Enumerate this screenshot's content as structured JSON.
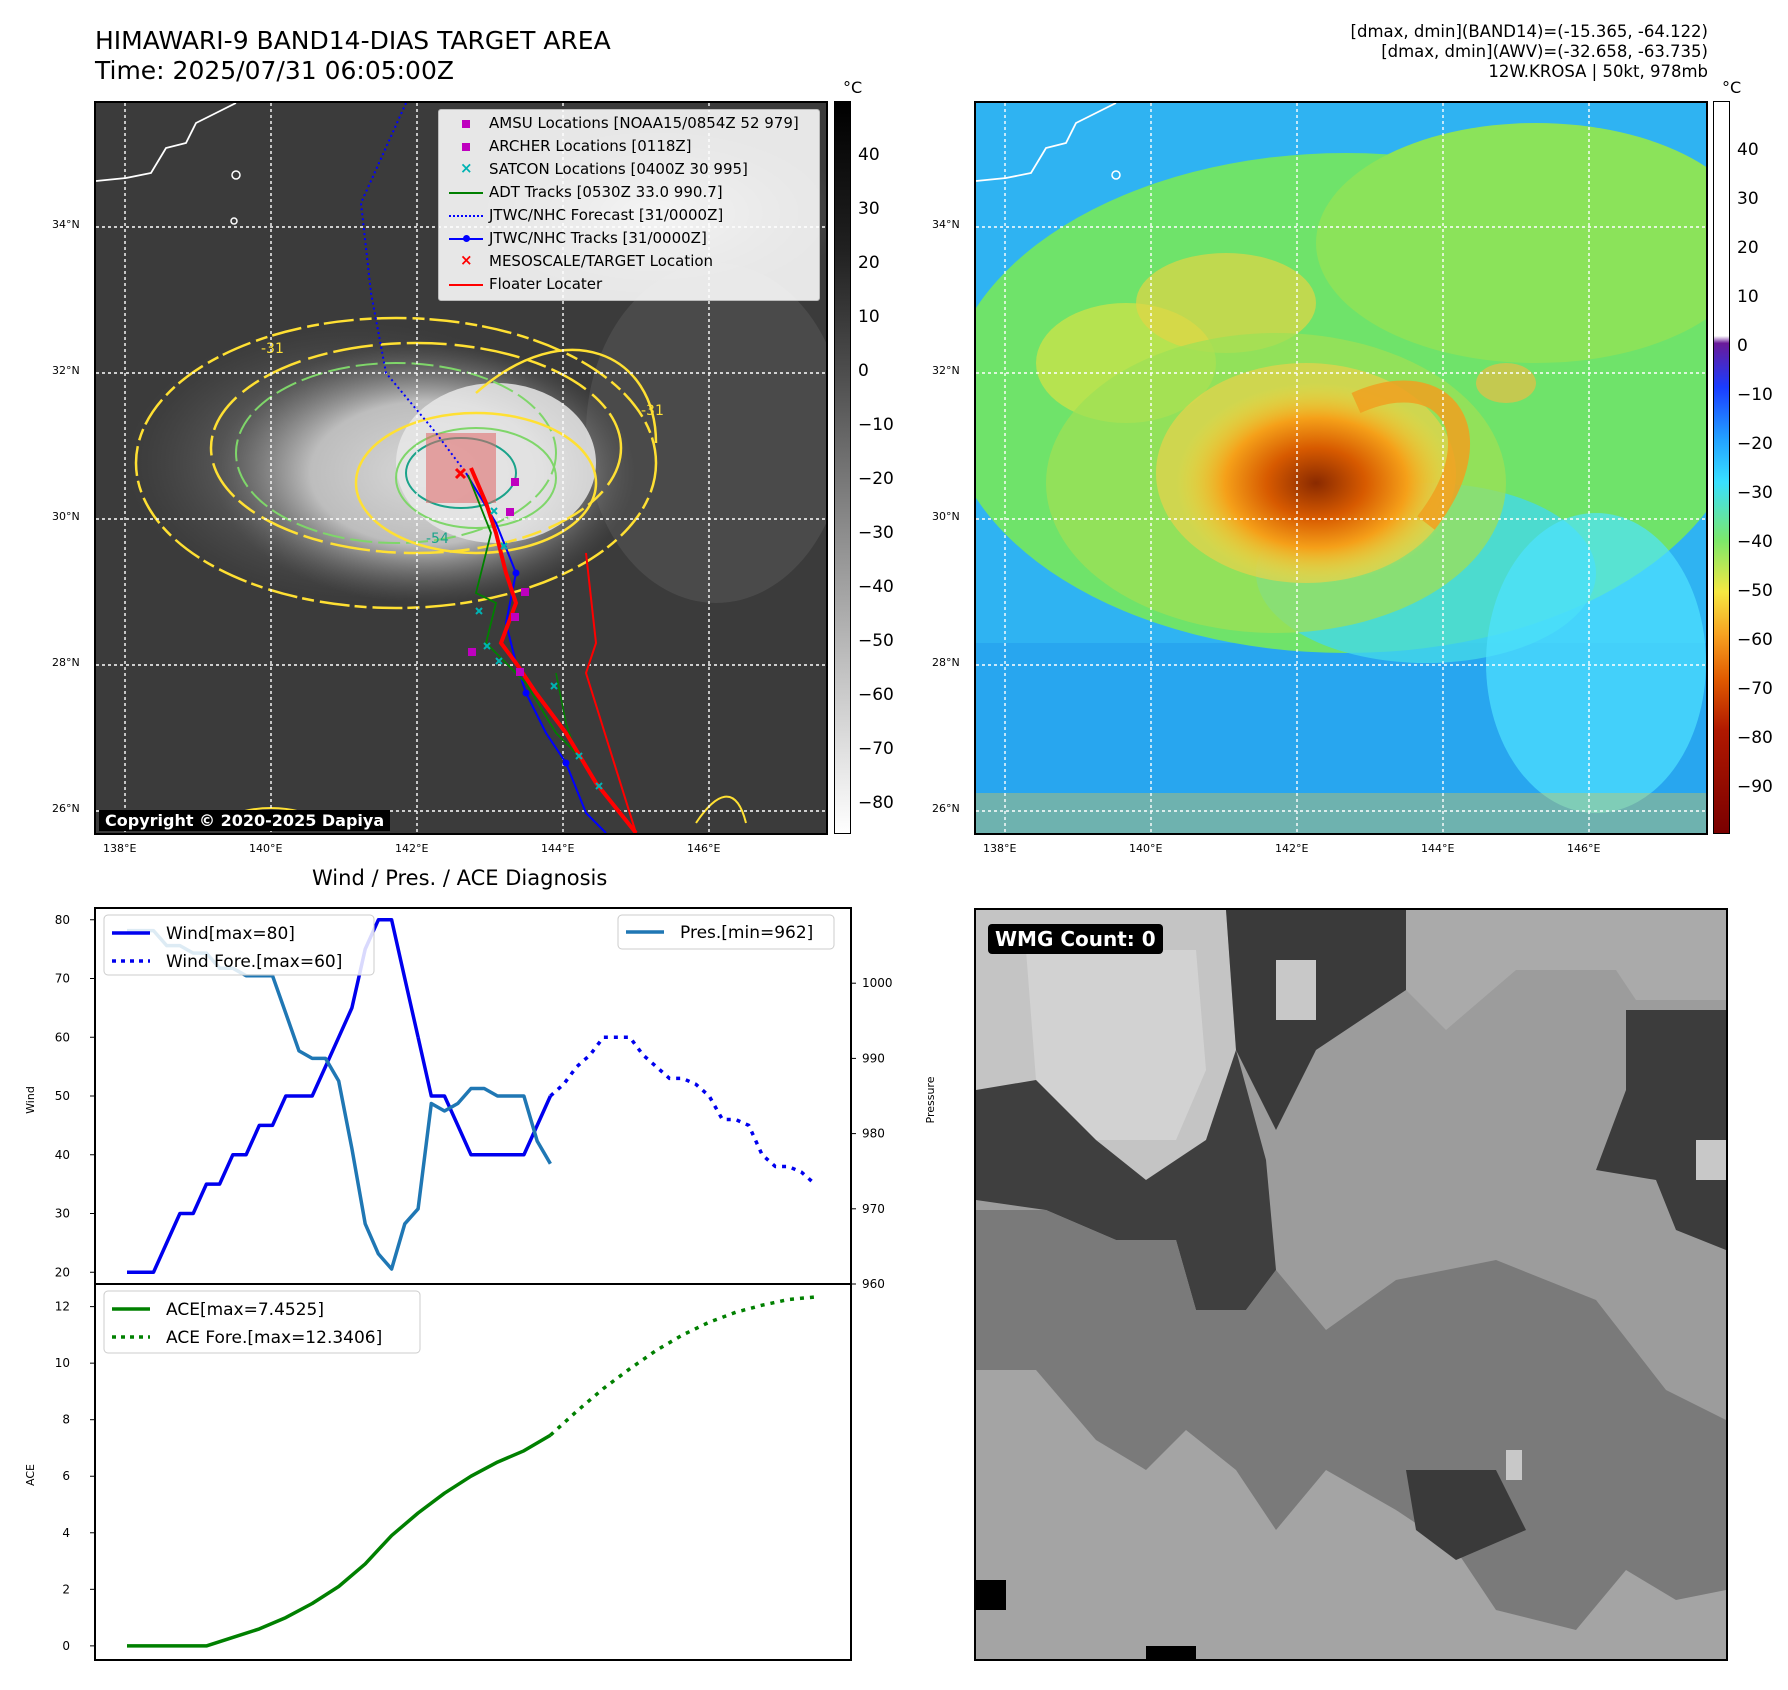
{
  "header": {
    "title_line1": "HIMAWARI-9 BAND14-DIAS TARGET AREA",
    "title_line2": "Time: 2025/07/31 06:05:00Z",
    "stats_line1": "[dmax, dmin](BAND14)=(-15.365, -64.122)",
    "stats_line2": "[dmax, dmin](AWV)=(-32.658, -63.735)",
    "stats_line3": "12W.KROSA | 50kt, 978mb"
  },
  "map": {
    "lon_ticks": [
      "138°E",
      "140°E",
      "142°E",
      "144°E",
      "146°E"
    ],
    "lat_ticks": [
      "34°N",
      "32°N",
      "30°N",
      "28°N",
      "26°N"
    ],
    "copyright": "Copyright © 2020-2025 Dapiya",
    "contour_labels": [
      "-31",
      "-54"
    ],
    "colors": {
      "coast": "#ffffff",
      "contour_warm": "#ffe033",
      "contour_mid": "#7fd66a",
      "contour_cold": "#1aa38a",
      "target_box": "#e06666"
    }
  },
  "legend": {
    "items": [
      {
        "label": "AMSU Locations [NOAA15/0854Z 52 979]",
        "symbol": "square",
        "color": "#bf00bf"
      },
      {
        "label": "ARCHER Locations [0118Z]",
        "symbol": "square",
        "color": "#bf00bf"
      },
      {
        "label": "SATCON Locations [0400Z 30 995]",
        "symbol": "x",
        "color": "#00b3b3"
      },
      {
        "label": "ADT Tracks [0530Z 33.0 990.7]",
        "symbol": "line",
        "color": "#008000"
      },
      {
        "label": "JTWC/NHC Forecast [31/0000Z]",
        "symbol": "dotted",
        "color": "#0000ff"
      },
      {
        "label": "JTWC/NHC Tracks [31/0000Z]",
        "symbol": "line-dot",
        "color": "#0000ff"
      },
      {
        "label": "MESOSCALE/TARGET Location",
        "symbol": "x",
        "color": "#ff0000"
      },
      {
        "label": "Floater Locater",
        "symbol": "line",
        "color": "#ff0000"
      }
    ]
  },
  "colorbar_band14": {
    "unit": "°C",
    "ticks": [
      "40",
      "30",
      "20",
      "10",
      "0",
      "−10",
      "−20",
      "−30",
      "−40",
      "−50",
      "−60",
      "−70",
      "−80"
    ]
  },
  "colorbar_awv": {
    "unit": "°C",
    "ticks": [
      "40",
      "30",
      "20",
      "10",
      "0",
      "−10",
      "−20",
      "−30",
      "−40",
      "−50",
      "−60",
      "−70",
      "−80",
      "−90"
    ]
  },
  "diagnosis_title": "Wind / Pres. / ACE Diagnosis",
  "wmg": {
    "label": "WMG Count: 0"
  },
  "chart_data": [
    {
      "type": "line",
      "title": "Wind / Pres. / ACE Diagnosis",
      "ylabel": "Wind",
      "y2label": "Pressure",
      "ylim": [
        18,
        82
      ],
      "y2lim": [
        960,
        1010
      ],
      "yticks": [
        20,
        30,
        40,
        50,
        60,
        70,
        80
      ],
      "y2ticks": [
        960,
        970,
        980,
        990,
        1000
      ],
      "series": [
        {
          "name": "Wind[max=80]",
          "axis": "left",
          "style": "solid",
          "color": "#0000ee",
          "x": [
            0,
            1,
            2,
            3,
            4,
            5,
            6,
            7,
            8,
            9,
            10,
            11,
            12,
            13,
            14,
            15,
            16,
            17,
            18,
            19,
            20,
            21,
            22
          ],
          "values": [
            20,
            20,
            20,
            25,
            30,
            30,
            35,
            35,
            40,
            40,
            45,
            45,
            50,
            50,
            50,
            55,
            60,
            65,
            75,
            80,
            80,
            70,
            60
          ]
        },
        {
          "name": "Wind[max=80]",
          "axis": "left",
          "style": "solid",
          "color": "#0000ee",
          "x": [
            22,
            23,
            24,
            25,
            26,
            27,
            28,
            29,
            30,
            31,
            32
          ],
          "values": [
            60,
            50,
            50,
            45,
            40,
            40,
            40,
            40,
            40,
            45,
            50
          ]
        },
        {
          "name": "Wind Fore.[max=60]",
          "axis": "left",
          "style": "dotted",
          "color": "#0000ee",
          "x": [
            32,
            33,
            34,
            35,
            36,
            37,
            38,
            39,
            40,
            41,
            42,
            43,
            44,
            45,
            46,
            47,
            48,
            49,
            50,
            51,
            52
          ],
          "values": [
            50,
            52,
            55,
            57,
            60,
            60,
            60,
            57,
            55,
            53,
            53,
            52,
            50,
            46,
            46,
            45,
            40,
            38,
            38,
            37,
            35
          ]
        },
        {
          "name": "Pres.[min=962]",
          "axis": "right",
          "style": "solid",
          "color": "#1f77b4",
          "x": [
            0,
            1,
            2,
            3,
            4,
            5,
            6,
            7,
            8,
            9,
            10,
            11,
            12,
            13,
            14,
            15,
            16,
            17,
            18,
            19,
            20,
            21,
            22,
            23,
            24,
            25,
            26,
            27,
            28,
            29,
            30,
            31,
            32
          ],
          "values": [
            1007,
            1007,
            1007,
            1005,
            1005,
            1004,
            1004,
            1002,
            1002,
            1001,
            1001,
            1001,
            996,
            991,
            990,
            990,
            987,
            978,
            968,
            964,
            962,
            968,
            970,
            984,
            983,
            984,
            986,
            986,
            985,
            985,
            985,
            979,
            976
          ]
        }
      ]
    },
    {
      "type": "line",
      "ylabel": "ACE",
      "ylim": [
        -0.5,
        12.8
      ],
      "yticks": [
        0,
        2,
        4,
        6,
        8,
        10,
        12
      ],
      "series": [
        {
          "name": "ACE[max=7.4525]",
          "style": "solid",
          "color": "#008000",
          "x": [
            0,
            2,
            4,
            6,
            8,
            10,
            12,
            14,
            16,
            18,
            19,
            20,
            22,
            24,
            26,
            28,
            30,
            32
          ],
          "values": [
            0,
            0,
            0,
            0,
            0.3,
            0.6,
            1.0,
            1.5,
            2.1,
            2.9,
            3.4,
            3.9,
            4.7,
            5.4,
            6.0,
            6.5,
            6.9,
            7.45
          ]
        },
        {
          "name": "ACE Fore.[max=12.3406]",
          "style": "dotted",
          "color": "#008000",
          "x": [
            32,
            34,
            36,
            38,
            40,
            42,
            44,
            46,
            48,
            50,
            52
          ],
          "values": [
            7.45,
            8.3,
            9.1,
            9.8,
            10.45,
            11.0,
            11.45,
            11.8,
            12.05,
            12.25,
            12.34
          ]
        }
      ]
    }
  ]
}
